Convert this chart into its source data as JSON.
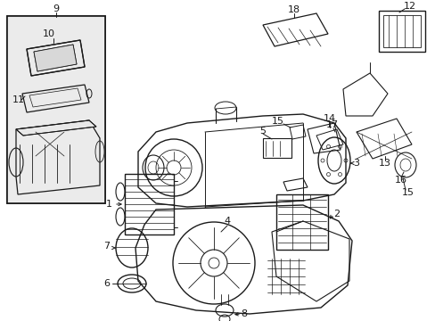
{
  "background_color": "#ffffff",
  "line_color": "#1a1a1a",
  "figsize": [
    4.89,
    3.6
  ],
  "dpi": 100,
  "xlim": [
    0,
    489
  ],
  "ylim": [
    360,
    0
  ]
}
